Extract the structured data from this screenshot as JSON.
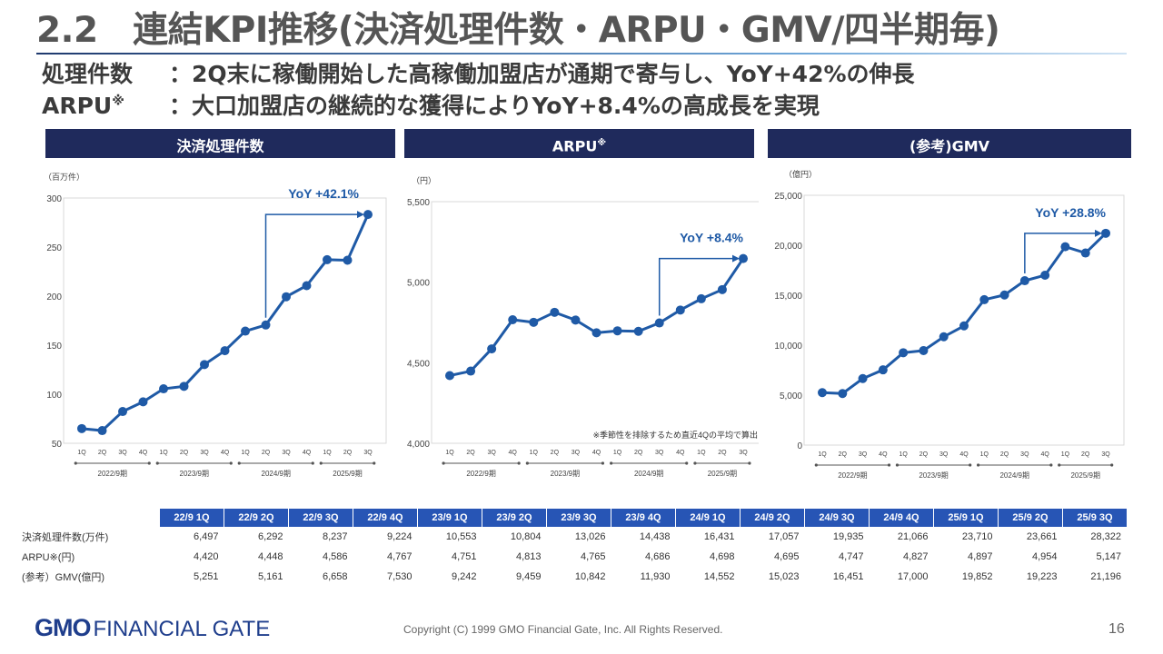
{
  "title": "2.2　連結KPI推移(決済処理件数・ARPU・GMV/四半期毎)",
  "subtitles": [
    {
      "label": "処理件数",
      "sup": "",
      "text": "：2Q末に稼働開始した高稼働加盟店が通期で寄与し、YoY+42%の伸長"
    },
    {
      "label": "ARPU",
      "sup": "※",
      "text": "：大口加盟店の継続的な獲得によりYoY+8.4%の高成長を実現"
    }
  ],
  "headers": [
    {
      "label": "決済処理件数",
      "sup": ""
    },
    {
      "label": "ARPU",
      "sup": "※"
    },
    {
      "label": "(参考)GMV",
      "sup": ""
    }
  ],
  "colors": {
    "line": "#1f5aa6",
    "header": "#1f2a5c",
    "table_header": "#2755b5"
  },
  "chart_data": [
    {
      "type": "line",
      "unit_label": "（百万件）",
      "ylim": [
        50,
        300
      ],
      "yticks": [
        50,
        100,
        150,
        200,
        250,
        300
      ],
      "x": [
        "1Q",
        "2Q",
        "3Q",
        "4Q",
        "1Q",
        "2Q",
        "3Q",
        "4Q",
        "1Q",
        "2Q",
        "3Q",
        "4Q",
        "1Q",
        "2Q",
        "3Q"
      ],
      "periods": [
        "2022/9期",
        "2023/9期",
        "2024/9期",
        "2025/9期"
      ],
      "values": [
        64.97,
        62.92,
        82.37,
        92.24,
        105.53,
        108.04,
        130.26,
        144.38,
        164.31,
        170.57,
        199.35,
        210.66,
        237.1,
        236.61,
        283.22
      ],
      "yoy": "YoY +42.1%",
      "note": ""
    },
    {
      "type": "line",
      "unit_label": "（円）",
      "ylim": [
        4000,
        5500
      ],
      "yticks": [
        4000,
        4500,
        5000,
        5500
      ],
      "ytick_labels": [
        "4,000",
        "4,500",
        "5,000",
        "5,500"
      ],
      "x": [
        "1Q",
        "2Q",
        "3Q",
        "4Q",
        "1Q",
        "2Q",
        "3Q",
        "4Q",
        "1Q",
        "2Q",
        "3Q",
        "4Q",
        "1Q",
        "2Q",
        "3Q"
      ],
      "periods": [
        "2022/9期",
        "2023/9期",
        "2024/9期",
        "2025/9期"
      ],
      "values": [
        4420,
        4448,
        4586,
        4767,
        4751,
        4813,
        4765,
        4686,
        4698,
        4695,
        4747,
        4827,
        4897,
        4954,
        5147
      ],
      "yoy": "YoY +8.4%",
      "note": "※季節性を排除するため直近4Qの平均で算出"
    },
    {
      "type": "line",
      "unit_label": "（億円）",
      "ylim": [
        0,
        25000
      ],
      "yticks": [
        0,
        5000,
        10000,
        15000,
        20000,
        25000
      ],
      "ytick_labels": [
        "0",
        "5,000",
        "10,000",
        "15,000",
        "20,000",
        "25,000"
      ],
      "x": [
        "1Q",
        "2Q",
        "3Q",
        "4Q",
        "1Q",
        "2Q",
        "3Q",
        "4Q",
        "1Q",
        "2Q",
        "3Q",
        "4Q",
        "1Q",
        "2Q",
        "3Q"
      ],
      "periods": [
        "2022/9期",
        "2023/9期",
        "2024/9期",
        "2025/9期"
      ],
      "values": [
        5251,
        5161,
        6658,
        7530,
        9242,
        9459,
        10842,
        11930,
        14552,
        15023,
        16451,
        17000,
        19852,
        19223,
        21196
      ],
      "yoy": "YoY +28.8%",
      "note": ""
    }
  ],
  "table": {
    "columns": [
      "22/9 1Q",
      "22/9 2Q",
      "22/9 3Q",
      "22/9 4Q",
      "23/9 1Q",
      "23/9 2Q",
      "23/9 3Q",
      "23/9 4Q",
      "24/9 1Q",
      "24/9 2Q",
      "24/9 3Q",
      "24/9 4Q",
      "25/9 1Q",
      "25/9 2Q",
      "25/9 3Q"
    ],
    "rows": [
      {
        "label": "決済処理件数(万件)",
        "values": [
          "6,497",
          "6,292",
          "8,237",
          "9,224",
          "10,553",
          "10,804",
          "13,026",
          "14,438",
          "16,431",
          "17,057",
          "19,935",
          "21,066",
          "23,710",
          "23,661",
          "28,322"
        ]
      },
      {
        "label": "ARPU※(円)",
        "values": [
          "4,420",
          "4,448",
          "4,586",
          "4,767",
          "4,751",
          "4,813",
          "4,765",
          "4,686",
          "4,698",
          "4,695",
          "4,747",
          "4,827",
          "4,897",
          "4,954",
          "5,147"
        ]
      },
      {
        "label": "(参考）GMV(億円)",
        "values": [
          "5,251",
          "5,161",
          "6,658",
          "7,530",
          "9,242",
          "9,459",
          "10,842",
          "11,930",
          "14,552",
          "15,023",
          "16,451",
          "17,000",
          "19,852",
          "19,223",
          "21,196"
        ]
      }
    ]
  },
  "footer": {
    "logo_gmo": "GMO",
    "logo_text": "FINANCIAL GATE",
    "copyright": "Copyright (C) 1999 GMO Financial Gate, Inc. All Rights Reserved.",
    "page": "16"
  }
}
